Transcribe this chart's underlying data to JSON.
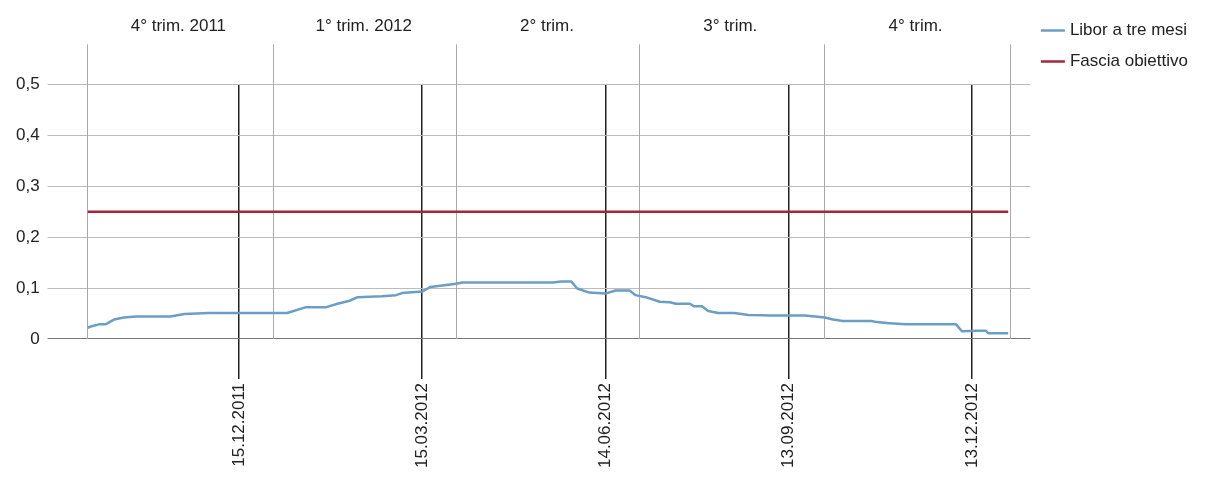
{
  "chart_data": {
    "type": "line",
    "legend": "top right",
    "grid": true,
    "marker": "none",
    "line_style": "solid",
    "xlim": [
      "2011-09-21",
      "2013-01-11"
    ],
    "xticks": [
      {
        "value": "2011-12-15",
        "label": "15.12.2011"
      },
      {
        "value": "2012-03-15",
        "label": "15.03.2012"
      },
      {
        "value": "2012-06-14",
        "label": "14.06.2012"
      },
      {
        "value": "2012-09-13",
        "label": "13.09.2012"
      },
      {
        "value": "2012-12-13",
        "label": "13.12.2012"
      }
    ],
    "x2lim": [
      "2011-09-21",
      "2013-01-11"
    ],
    "x2ticks": [
      {
        "value": "2011-10-01",
        "label": null
      },
      {
        "value": "2012-01-01",
        "label": null
      },
      {
        "value": "2012-04-01",
        "label": null
      },
      {
        "value": "2012-07-01",
        "label": null
      },
      {
        "value": "2012-10-01",
        "label": null
      },
      {
        "value": "2013-01-01",
        "label": null
      },
      {
        "value": "2011-11-15",
        "label": "4° trim. 2011"
      },
      {
        "value": "2012-02-15",
        "label": "1° trim. 2012"
      },
      {
        "value": "2012-05-16",
        "label": "2° trim."
      },
      {
        "value": "2012-08-15",
        "label": "3° trim."
      },
      {
        "value": "2012-11-15",
        "label": "4° trim."
      }
    ],
    "ylim": [
      0,
      0.5
    ],
    "yticks": [
      {
        "value": 0,
        "label": "0"
      },
      {
        "value": 0.1,
        "label": "0,1"
      },
      {
        "value": 0.2,
        "label": "0,2"
      },
      {
        "value": 0.3,
        "label": "0,3"
      },
      {
        "value": 0.4,
        "label": "0,4"
      },
      {
        "value": 0.5,
        "label": "0,5"
      }
    ],
    "series": [
      {
        "name": "Libor a tre mesi",
        "color": "#6a9ec5",
        "x": [
          "2011-10-01",
          "2011-10-03",
          "2011-10-07",
          "2011-10-10",
          "2011-10-14",
          "2011-10-19",
          "2011-10-25",
          "2011-11-11",
          "2011-11-18",
          "2011-11-30",
          "2012-01-08",
          "2012-01-17",
          "2012-01-27",
          "2012-02-02",
          "2012-02-08",
          "2012-02-12",
          "2012-02-24",
          "2012-03-02",
          "2012-03-05",
          "2012-03-15",
          "2012-03-19",
          "2012-03-31",
          "2012-04-04",
          "2012-05-19",
          "2012-05-23",
          "2012-05-28",
          "2012-05-31",
          "2012-06-06",
          "2012-06-14",
          "2012-06-19",
          "2012-06-26",
          "2012-06-29",
          "2012-07-04",
          "2012-07-11",
          "2012-07-16",
          "2012-07-19",
          "2012-07-26",
          "2012-07-28",
          "2012-08-01",
          "2012-08-04",
          "2012-08-09",
          "2012-08-17",
          "2012-08-24",
          "2012-09-04",
          "2012-09-21",
          "2012-10-01",
          "2012-10-05",
          "2012-10-10",
          "2012-10-24",
          "2012-10-27",
          "2012-11-02",
          "2012-11-10",
          "2012-12-05",
          "2012-12-08",
          "2012-12-16",
          "2012-12-20",
          "2012-12-21",
          "2012-12-31"
        ],
        "values": [
          0.022,
          0.025,
          0.029,
          0.029,
          0.038,
          0.042,
          0.044,
          0.044,
          0.049,
          0.051,
          0.051,
          0.062,
          0.062,
          0.069,
          0.075,
          0.082,
          0.084,
          0.086,
          0.09,
          0.093,
          0.102,
          0.108,
          0.111,
          0.111,
          0.113,
          0.113,
          0.099,
          0.091,
          0.089,
          0.095,
          0.095,
          0.086,
          0.082,
          0.073,
          0.072,
          0.069,
          0.069,
          0.064,
          0.064,
          0.055,
          0.051,
          0.051,
          0.047,
          0.046,
          0.046,
          0.042,
          0.038,
          0.035,
          0.035,
          0.033,
          0.031,
          0.029,
          0.029,
          0.015,
          0.016,
          0.016,
          0.011,
          0.011
        ]
      },
      {
        "name": "Fascia obiettivo",
        "color": "#a3273a",
        "x": [
          "2011-10-01",
          "2012-12-31"
        ],
        "values": [
          0.25,
          0.25
        ]
      }
    ]
  }
}
